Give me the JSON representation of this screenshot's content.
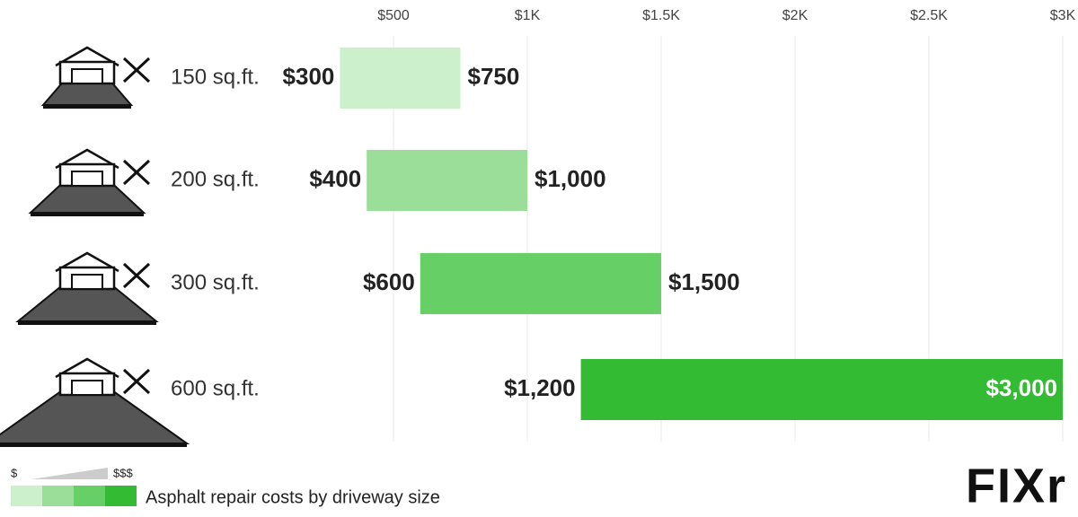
{
  "chart_data": {
    "type": "range_bar",
    "categories": [
      "150 sq.ft.",
      "200 sq.ft.",
      "300 sq.ft.",
      "600 sq.ft."
    ],
    "low": [
      300,
      400,
      600,
      1200
    ],
    "low_labels": [
      "$300",
      "$400",
      "$600",
      "$1,200"
    ],
    "high": [
      750,
      1000,
      1500,
      3000
    ],
    "high_labels": [
      "$750",
      "$1,000",
      "$1,500",
      "$3,000"
    ],
    "colors": [
      "#ccf0cc",
      "#9ade9a",
      "#66cf66",
      "#33bb33"
    ],
    "xlim": [
      0,
      3000
    ],
    "xticks": [
      {
        "value": 500,
        "label": "$500"
      },
      {
        "value": 1000,
        "label": "$1K"
      },
      {
        "value": 1500,
        "label": "$1.5K"
      },
      {
        "value": 2000,
        "label": "$2K"
      },
      {
        "value": 2500,
        "label": "$2.5K"
      },
      {
        "value": 3000,
        "label": "$3K"
      }
    ],
    "grid": true,
    "legend": {
      "low_label": "$",
      "high_label": "$$$",
      "title": "Asphalt repair costs by driveway size"
    },
    "logo": "FIXr"
  }
}
